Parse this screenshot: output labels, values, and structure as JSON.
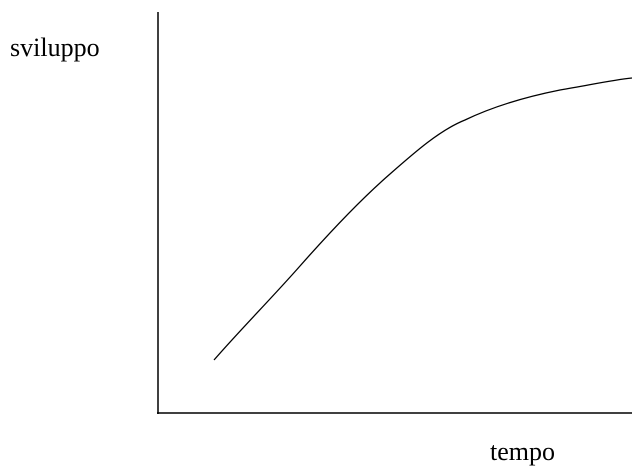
{
  "labels": {
    "y": "sviluppo",
    "x": "tempo"
  }
}
